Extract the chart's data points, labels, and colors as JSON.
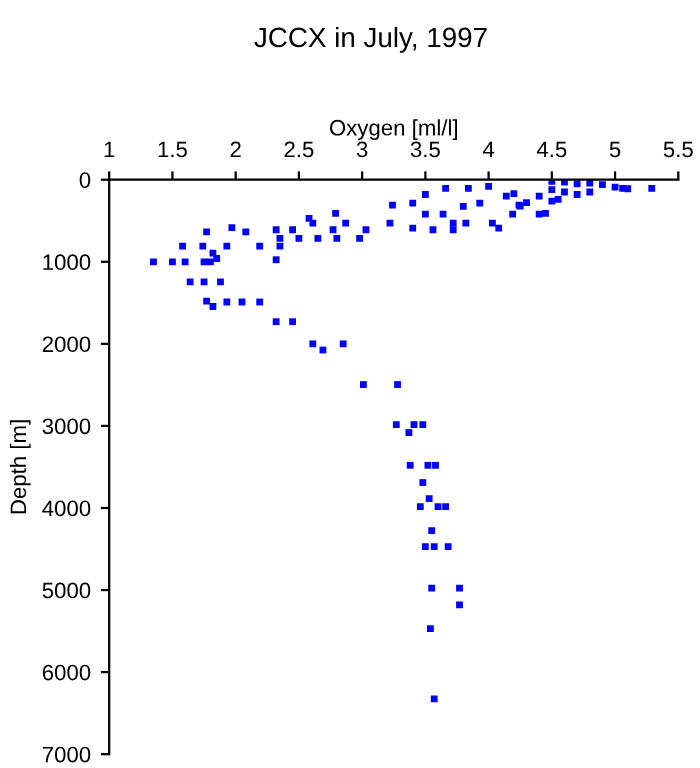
{
  "chart_data": {
    "type": "scatter",
    "title": "JCCX in July, 1997",
    "xlabel": "Oxygen [ml/l]",
    "ylabel": "Depth [m]",
    "xlim": [
      1,
      5.5
    ],
    "xticks": [
      1,
      1.5,
      2,
      2.5,
      3,
      3.5,
      4,
      4.5,
      5,
      5.5
    ],
    "ylim": [
      7000,
      0
    ],
    "yticks": [
      0,
      1000,
      2000,
      3000,
      4000,
      5000,
      6000,
      7000
    ],
    "grid": false,
    "marker": "square",
    "series": [
      {
        "color": "#0000ff",
        "x": [
          4.5,
          4.6,
          4.7,
          4.8,
          4.9,
          5.0,
          5.1,
          4.5,
          4.6,
          4.7,
          4.8,
          4.4,
          4.55,
          4.3,
          4.2,
          4.25,
          4.5,
          5.29,
          5.06,
          3.66,
          4.0,
          3.84,
          3.5,
          3.24,
          3.4,
          3.8,
          3.93,
          4.14,
          4.24,
          3.5,
          3.64,
          3.72,
          3.82,
          4.03,
          4.19,
          4.4,
          4.45,
          4.08,
          2.58,
          2.79,
          2.87,
          3.22,
          3.4,
          3.56,
          3.72,
          3.03,
          2.98,
          2.77,
          2.61,
          2.35,
          2.5,
          2.65,
          2.8,
          2.32,
          2.45,
          2.35,
          2.32,
          1.77,
          1.97,
          2.08,
          2.19,
          1.93,
          1.74,
          1.58,
          1.82,
          1.85,
          1.35,
          1.5,
          1.6,
          1.75,
          1.8,
          1.64,
          1.75,
          1.88,
          1.77,
          1.82,
          1.93,
          2.05,
          2.19,
          2.32,
          2.45,
          2.61,
          2.85,
          2.69,
          3.01,
          3.28,
          3.27,
          3.41,
          3.48,
          3.37,
          3.38,
          3.52,
          3.58,
          3.48,
          3.53,
          3.46,
          3.6,
          3.66,
          3.55,
          3.5,
          3.57,
          3.68,
          3.55,
          3.77,
          3.77,
          3.54,
          3.57
        ],
        "values": [
          20,
          30,
          50,
          40,
          60,
          90,
          110,
          120,
          150,
          180,
          150,
          200,
          240,
          280,
          170,
          320,
          260,
          105,
          105,
          105,
          80,
          105,
          180,
          310,
          285,
          325,
          285,
          200,
          310,
          420,
          420,
          530,
          530,
          530,
          420,
          420,
          410,
          590,
          470,
          410,
          530,
          530,
          590,
          610,
          610,
          610,
          715,
          610,
          530,
          715,
          715,
          715,
          715,
          610,
          610,
          810,
          975,
          635,
          585,
          635,
          810,
          810,
          810,
          810,
          895,
          960,
          1000,
          1000,
          1000,
          1000,
          1000,
          1245,
          1245,
          1245,
          1480,
          1545,
          1490,
          1490,
          1490,
          1730,
          1730,
          2000,
          2000,
          2075,
          2496,
          2496,
          2984,
          2984,
          2984,
          3081,
          3480,
          3480,
          3480,
          3690,
          3886,
          3984,
          3984,
          3984,
          4276,
          4471,
          4471,
          4471,
          4976,
          4976,
          5180,
          5471,
          6325
        ]
      }
    ]
  }
}
